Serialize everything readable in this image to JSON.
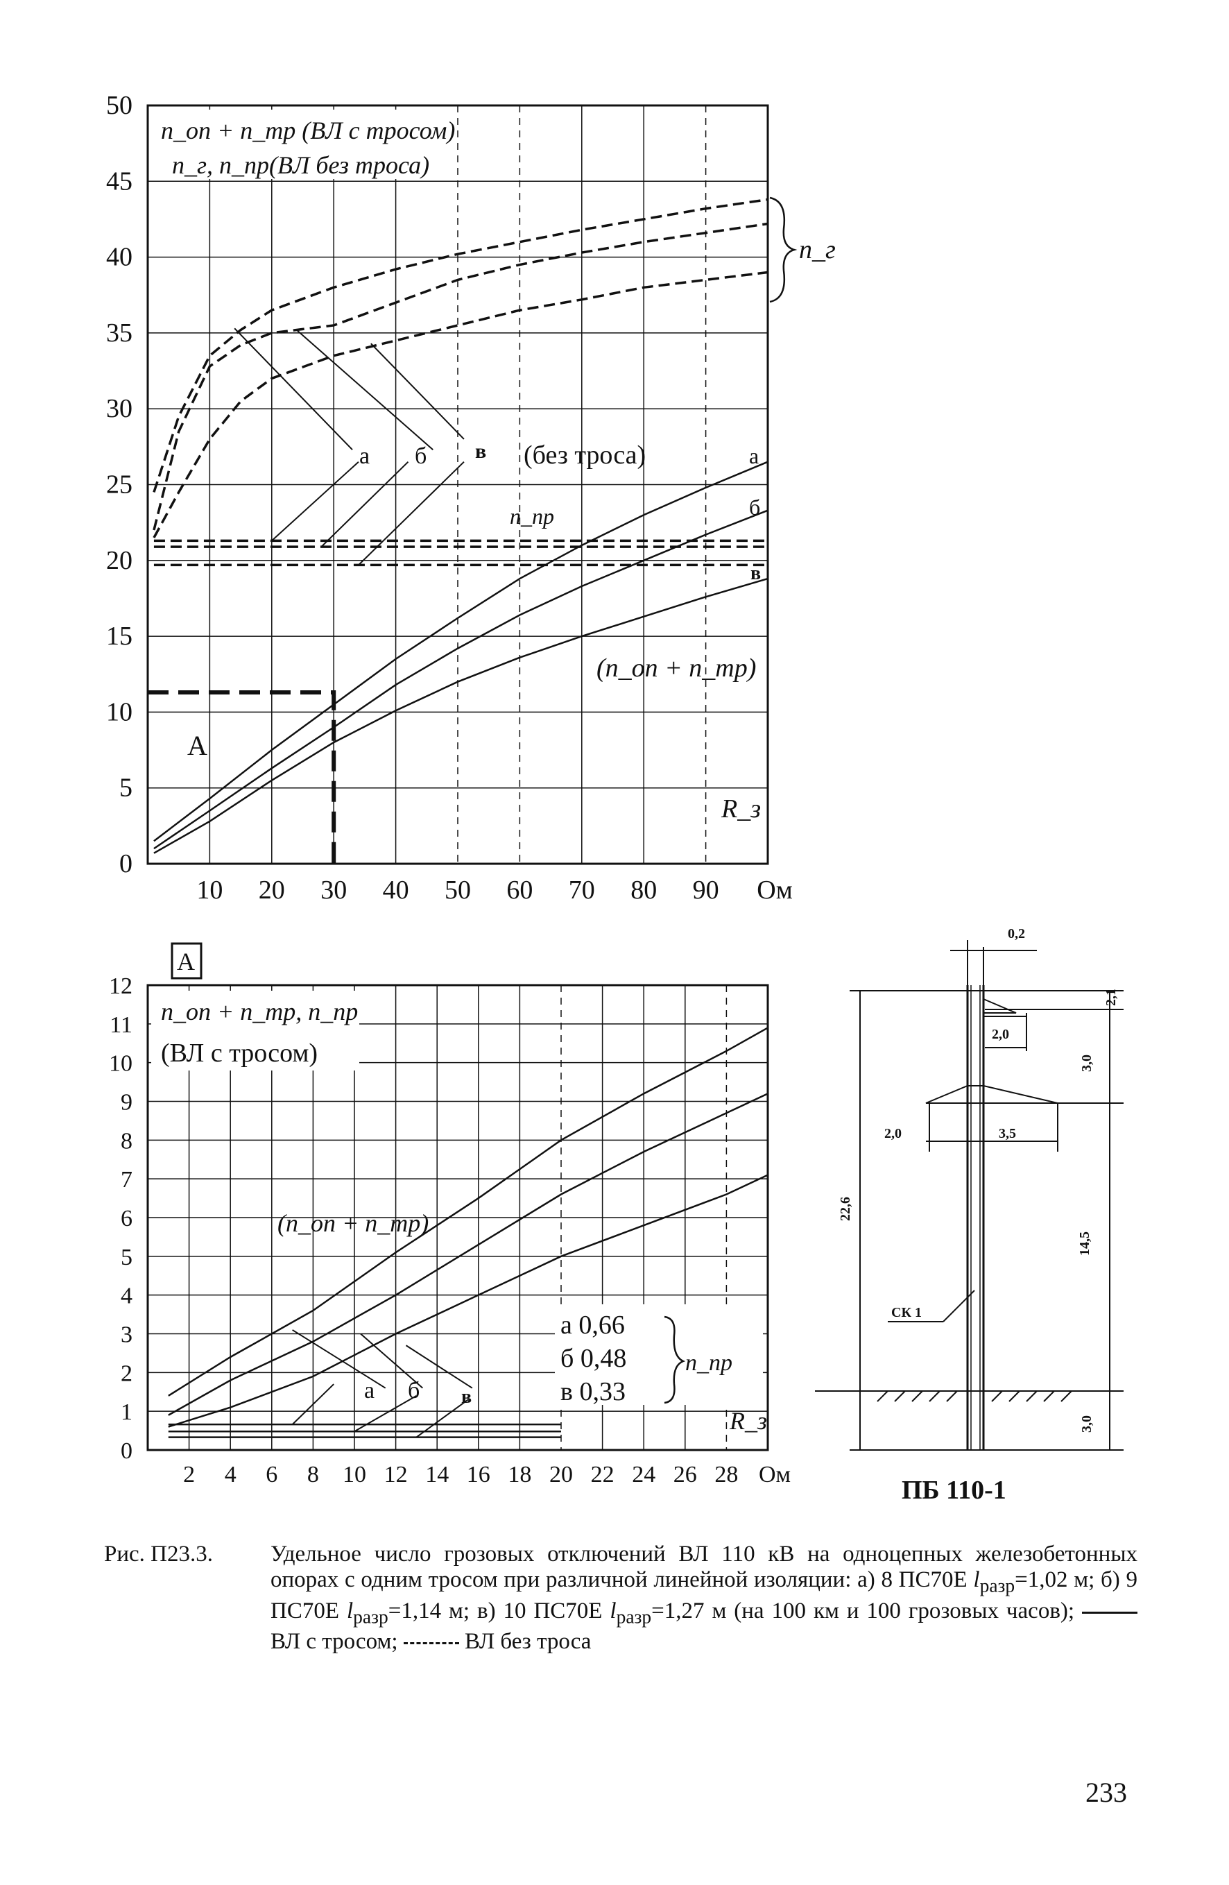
{
  "chart_data": [
    {
      "type": "line",
      "title": "",
      "header_lines": [
        "n_оп + n_тр (ВЛ с тросом)",
        "n_г, n_пр(ВЛ без троса)"
      ],
      "xlabel": "R_з",
      "x_unit": "Ом",
      "xlim": [
        0,
        100
      ],
      "ylim": [
        0,
        50
      ],
      "x_ticks": [
        "10",
        "20",
        "30",
        "40",
        "50",
        "60",
        "70",
        "80",
        "90",
        "Ом"
      ],
      "y_ticks": [
        "0",
        "5",
        "10",
        "15",
        "20",
        "25",
        "30",
        "35",
        "40",
        "45",
        "50"
      ],
      "grid": true,
      "x_tick_values": [
        10,
        20,
        30,
        40,
        50,
        60,
        70,
        80,
        90
      ],
      "y_tick_values": [
        0,
        5,
        10,
        15,
        20,
        25,
        30,
        35,
        40,
        45,
        50
      ],
      "series": [
        {
          "name": "а",
          "group": "n_г",
          "style": "dashed",
          "x": [
            1,
            5,
            10,
            15,
            20,
            30,
            40,
            50,
            60,
            70,
            80,
            90,
            100
          ],
          "y": [
            24.5,
            29.5,
            33.5,
            35.2,
            36.5,
            38,
            39.2,
            40.2,
            41,
            41.8,
            42.5,
            43.2,
            43.8
          ]
        },
        {
          "name": "б",
          "group": "n_г",
          "style": "dashed",
          "x": [
            1,
            5,
            10,
            15,
            20,
            30,
            40,
            50,
            60,
            70,
            80,
            90,
            100
          ],
          "y": [
            22,
            28.5,
            32.8,
            34.2,
            35,
            35.5,
            37,
            38.5,
            39.5,
            40.3,
            41,
            41.6,
            42.2
          ]
        },
        {
          "name": "в",
          "group": "n_г",
          "style": "dashed",
          "x": [
            1,
            5,
            10,
            15,
            20,
            30,
            40,
            50,
            60,
            70,
            80,
            90,
            100
          ],
          "y": [
            21.5,
            24.5,
            28,
            30.5,
            32,
            33.5,
            34.5,
            35.5,
            36.5,
            37.2,
            38,
            38.5,
            39
          ]
        },
        {
          "name": "а",
          "group": "n_пр",
          "style": "dashed",
          "x": [
            1,
            100
          ],
          "y": [
            21.3,
            21.3
          ]
        },
        {
          "name": "б",
          "group": "n_пр",
          "style": "dashed",
          "x": [
            1,
            100
          ],
          "y": [
            20.9,
            20.9
          ]
        },
        {
          "name": "в",
          "group": "n_пр",
          "style": "dashed",
          "x": [
            1,
            100
          ],
          "y": [
            19.7,
            19.7
          ]
        },
        {
          "name": "а",
          "group": "n_оп + n_тр",
          "style": "solid",
          "x": [
            1,
            10,
            20,
            30,
            40,
            50,
            60,
            70,
            80,
            90,
            100
          ],
          "y": [
            1.5,
            4.3,
            7.5,
            10.5,
            13.5,
            16.2,
            18.8,
            21,
            23,
            24.8,
            26.5
          ]
        },
        {
          "name": "б",
          "group": "n_оп + n_тр",
          "style": "solid",
          "x": [
            1,
            10,
            20,
            30,
            40,
            50,
            60,
            70,
            80,
            90,
            100
          ],
          "y": [
            1,
            3.5,
            6.3,
            9,
            11.8,
            14.2,
            16.4,
            18.3,
            20,
            21.7,
            23.3
          ]
        },
        {
          "name": "в",
          "group": "n_оп + n_тр",
          "style": "solid",
          "x": [
            1,
            10,
            20,
            30,
            40,
            50,
            60,
            70,
            80,
            90,
            100
          ],
          "y": [
            0.7,
            2.8,
            5.5,
            8,
            10.1,
            12,
            13.6,
            15,
            16.3,
            17.6,
            18.8
          ]
        }
      ],
      "marker_path": {
        "x": [
          0,
          30,
          30
        ],
        "y": [
          11.3,
          11.3,
          0
        ]
      },
      "labels": {
        "curve_a": "а",
        "curve_b": "б",
        "curve_v": "в",
        "no_cable": "(без троса)",
        "n_g": "n_г",
        "n_pr": "n_пр",
        "sum_label": "(n_оп + n_тр)",
        "region_a": "А",
        "axis_var": "R_з"
      }
    },
    {
      "type": "line",
      "title": "",
      "header_lines": [
        "n_оп + n_тр, n_пр",
        "(ВЛ с тросом)"
      ],
      "xlabel": "R_з",
      "x_unit": "Ом",
      "xlim": [
        0,
        30
      ],
      "ylim": [
        0,
        12
      ],
      "x_ticks": [
        "2",
        "4",
        "6",
        "8",
        "10",
        "12",
        "14",
        "16",
        "18",
        "20",
        "22",
        "24",
        "26",
        "28",
        "Ом"
      ],
      "y_ticks": [
        "0",
        "1",
        "2",
        "3",
        "4",
        "5",
        "6",
        "7",
        "8",
        "9",
        "10",
        "11",
        "12"
      ],
      "grid": true,
      "x_tick_values": [
        2,
        4,
        6,
        8,
        10,
        12,
        14,
        16,
        18,
        20,
        22,
        24,
        26,
        28
      ],
      "y_tick_values": [
        0,
        1,
        2,
        3,
        4,
        5,
        6,
        7,
        8,
        9,
        10,
        11,
        12
      ],
      "series": [
        {
          "name": "а",
          "group": "n_оп + n_тр",
          "style": "solid",
          "x": [
            1,
            4,
            8,
            12,
            16,
            20,
            24,
            28,
            30
          ],
          "y": [
            1.4,
            2.4,
            3.6,
            5.1,
            6.5,
            8,
            9.2,
            10.3,
            10.9
          ]
        },
        {
          "name": "б",
          "group": "n_оп + n_тр",
          "style": "solid",
          "x": [
            1,
            4,
            8,
            12,
            16,
            20,
            24,
            28,
            30
          ],
          "y": [
            0.9,
            1.8,
            2.8,
            4,
            5.3,
            6.6,
            7.7,
            8.7,
            9.2
          ]
        },
        {
          "name": "в",
          "group": "n_оп + n_тр",
          "style": "solid",
          "x": [
            1,
            4,
            8,
            12,
            16,
            20,
            24,
            28,
            30
          ],
          "y": [
            0.6,
            1.1,
            1.9,
            3,
            4,
            5,
            5.8,
            6.6,
            7.1
          ]
        },
        {
          "name": "а",
          "group": "n_пр",
          "style": "solid",
          "x": [
            1,
            20
          ],
          "y": [
            0.66,
            0.66
          ]
        },
        {
          "name": "б",
          "group": "n_пр",
          "style": "solid",
          "x": [
            1,
            20
          ],
          "y": [
            0.48,
            0.48
          ]
        },
        {
          "name": "в",
          "group": "n_пр",
          "style": "solid",
          "x": [
            1,
            20
          ],
          "y": [
            0.33,
            0.33
          ]
        }
      ],
      "labels": {
        "box": "А",
        "sum_label": "(n_оп + n_тр)",
        "curve_a": "а",
        "curve_b": "б",
        "curve_v": "в",
        "n_pr": "n_пр",
        "axis_var": "R_з",
        "values": [
          {
            "name": "а",
            "value": "0,66"
          },
          {
            "name": "б",
            "value": "0,48"
          },
          {
            "name": "в",
            "value": "0,33"
          }
        ]
      }
    }
  ],
  "drawing": {
    "title": "ПБ 110-1",
    "dims": [
      "0,2",
      "2,1",
      "2,0",
      "3,0",
      "2,0",
      "3,5",
      "22,6",
      "14,5",
      "3,0"
    ],
    "marker": "СК 1"
  },
  "caption": {
    "label": "Рис. П23.3.",
    "line1": "Удельное число грозовых отключений ВЛ 110 кВ на одноцепных железобетонных опорах с одним тросом при различной линейной изоляции: а) 8 ПС70Е l",
    "sub": "разр",
    "parts": [
      "а) 8 ПС70Е ",
      "=1,02 м; б) 9 ПС70Е ",
      "=1,14 м; в) 10 ПС70Е ",
      "=1,27 м (на 100 км и 100 грозовых часов);",
      "ВЛ с тросом;",
      "ВЛ без троса"
    ],
    "intro": "Удельное число грозовых отключений ВЛ 110 кВ на одноцепных железобетонных опорах с одним тросом при различной линейной изоляции:",
    "l": "l"
  },
  "page_number": "233"
}
